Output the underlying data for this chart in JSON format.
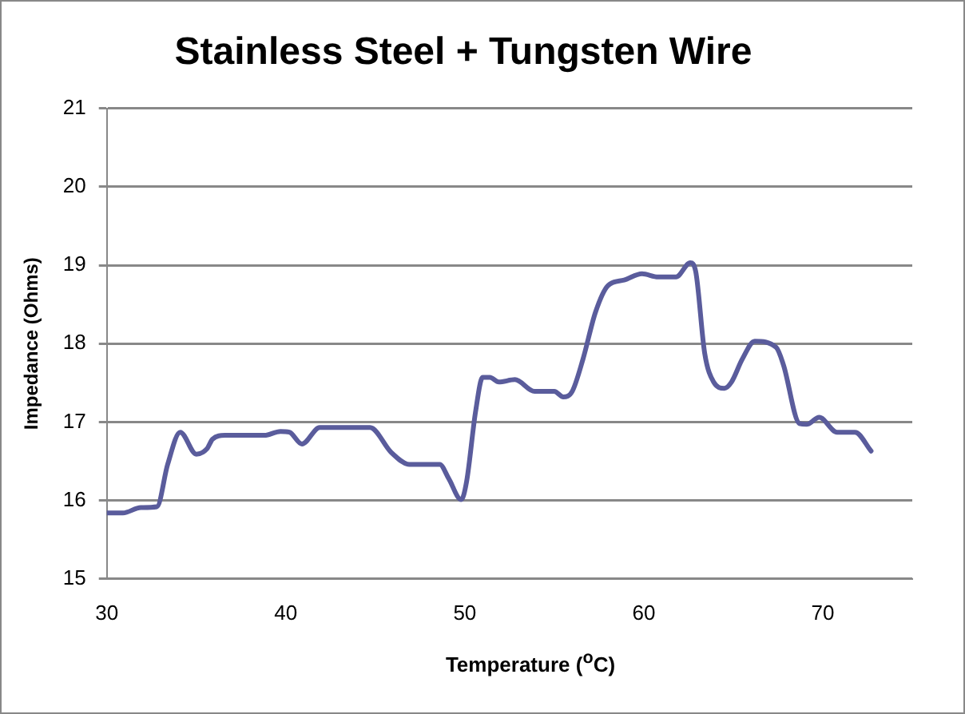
{
  "chart_data": {
    "type": "line",
    "title": "Stainless Steel + Tungsten Wire",
    "xlabel": "Temperature ($^{o}$C)",
    "ylabel": "Impedance (Ohms)",
    "x": [
      30,
      30.9,
      31.9,
      32.8,
      33.4,
      34.1,
      35.0,
      35.6,
      35.9,
      36.6,
      38.8,
      39.7,
      40.2,
      40.9,
      41.9,
      44.7,
      45.9,
      46.9,
      48.6,
      49.1,
      49.8,
      50.1,
      50.6,
      51.0,
      51.4,
      51.9,
      52.8,
      53.9,
      55.0,
      55.5,
      56.0,
      56.6,
      57.3,
      58.0,
      58.9,
      59.9,
      60.8,
      61.8,
      62.6,
      62.9,
      63.4,
      63.9,
      64.5,
      64.9,
      65.5,
      66.2,
      67.4,
      67.8,
      68.7,
      69.1,
      69.8,
      70.8,
      71.8,
      72.7
    ],
    "series": [
      {
        "color": "#5a5c9c",
        "values": [
          15.84,
          15.84,
          15.91,
          15.92,
          16.46,
          16.87,
          16.59,
          16.66,
          16.78,
          16.83,
          16.83,
          16.88,
          16.87,
          16.72,
          16.93,
          16.93,
          16.61,
          16.46,
          16.46,
          16.28,
          16.01,
          16.24,
          17.13,
          17.57,
          17.57,
          17.51,
          17.54,
          17.39,
          17.39,
          17.32,
          17.39,
          17.8,
          18.4,
          18.74,
          18.81,
          18.89,
          18.85,
          18.85,
          19.03,
          18.92,
          17.88,
          17.51,
          17.43,
          17.51,
          17.8,
          18.03,
          17.95,
          17.73,
          16.98,
          16.97,
          17.06,
          16.87,
          16.87,
          16.63
        ]
      }
    ],
    "xlim": [
      30,
      75
    ],
    "xticks": [
      30,
      40,
      50,
      60,
      70
    ],
    "ylim": [
      15,
      21
    ],
    "yticks": [
      15,
      16,
      17,
      18,
      19,
      20,
      21
    ],
    "grid": "y",
    "legend": false,
    "marker": "none",
    "line_style": "solid"
  }
}
